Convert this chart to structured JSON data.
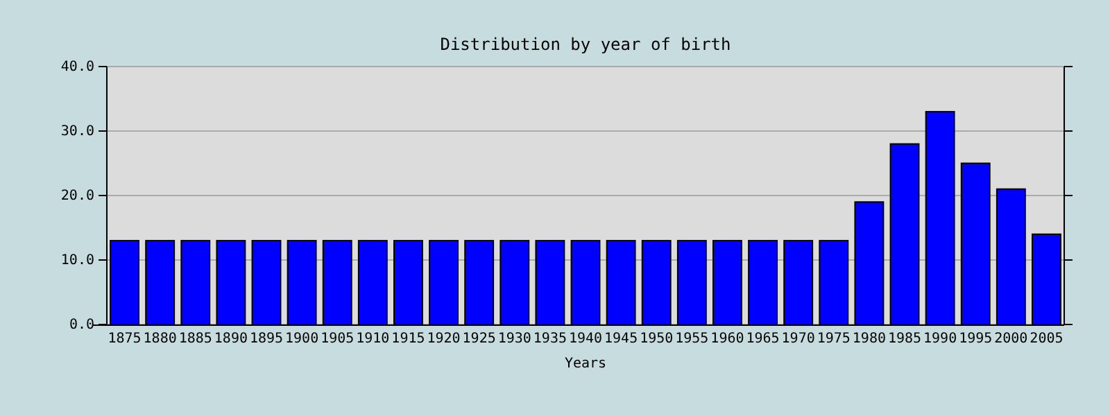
{
  "chart_data": {
    "type": "bar",
    "title": "Distribution by year of birth",
    "xlabel": "Years",
    "categories": [
      "1875",
      "1880",
      "1885",
      "1890",
      "1895",
      "1900",
      "1905",
      "1910",
      "1915",
      "1920",
      "1925",
      "1930",
      "1935",
      "1940",
      "1945",
      "1950",
      "1955",
      "1960",
      "1965",
      "1970",
      "1975",
      "1980",
      "1985",
      "1990",
      "1995",
      "2000",
      "2005"
    ],
    "values": [
      13,
      13,
      13,
      13,
      13,
      13,
      13,
      13,
      13,
      13,
      13,
      13,
      13,
      13,
      13,
      13,
      13,
      13,
      13,
      13,
      13,
      19,
      28,
      33,
      25,
      21,
      14
    ],
    "color": "#0000ff",
    "ylim": [
      0,
      40
    ],
    "yticks": [
      {
        "value": 0,
        "label": "0.0"
      },
      {
        "value": 10,
        "label": "10.0"
      },
      {
        "value": 20,
        "label": "20.0"
      },
      {
        "value": 30,
        "label": "30.0"
      },
      {
        "value": 40,
        "label": "40.0"
      }
    ],
    "grid": "y"
  }
}
